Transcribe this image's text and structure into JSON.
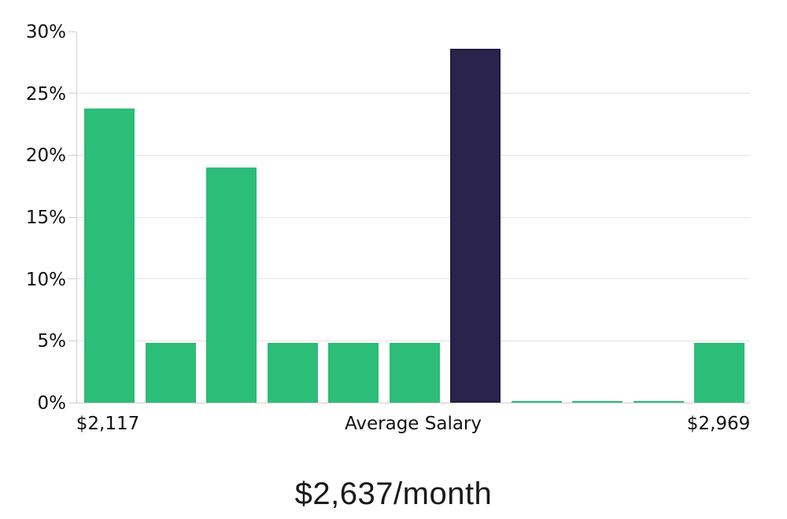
{
  "chart_data": {
    "type": "bar",
    "title": "$2,637/month",
    "xlabel": "",
    "ylabel": "",
    "ylim": [
      0,
      30
    ],
    "y_unit": "%",
    "y_tick_values": [
      0,
      5,
      10,
      15,
      20,
      25,
      30
    ],
    "y_tick_labels": [
      "0%",
      "5%",
      "10%",
      "15%",
      "20%",
      "25%",
      "30%"
    ],
    "gridline_values": [
      5,
      10,
      15,
      20,
      25
    ],
    "grid": true,
    "legend_position": "none",
    "values": [
      23.8,
      4.8,
      19.0,
      4.8,
      4.8,
      4.8,
      28.6,
      0.1,
      0.1,
      0.1,
      4.8
    ],
    "highlighted_bar_index": 6,
    "x_axis_labels": [
      {
        "text": "$2,117",
        "anchor_bar_index": 0
      },
      {
        "text": "Average Salary",
        "anchor": "plot-center"
      },
      {
        "text": "$2,969",
        "anchor_bar_index": 10
      }
    ],
    "annotation": "Salary distribution histogram; dark bar marks the bin containing the average salary"
  },
  "colors": {
    "bar_green": "#2cbd78",
    "bar_dark": "#2a234c",
    "gridline": "#e4e4e4",
    "axis_line": "#cfcfcf",
    "label_text": "#111111",
    "title_text": "#191919",
    "background": "#ffffff"
  }
}
